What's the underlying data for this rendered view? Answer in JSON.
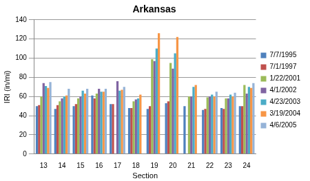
{
  "chart_data": {
    "type": "bar",
    "title": "Arkansas",
    "x_label": "Section",
    "y_label": "IRI (in/mi)",
    "categories": [
      "13",
      "14",
      "15",
      "16",
      "17",
      "18",
      "19",
      "20",
      "21",
      "22",
      "23",
      "24"
    ],
    "series": [
      {
        "name": "7/7/1995",
        "color": "#4f81bd",
        "values": [
          50,
          47,
          50,
          61,
          52,
          48,
          47,
          53,
          50,
          46,
          48,
          50
        ]
      },
      {
        "name": "7/1/1997",
        "color": "#c0504d",
        "values": [
          51,
          51,
          52,
          58,
          52,
          48,
          50,
          55,
          null,
          47,
          47,
          50
        ]
      },
      {
        "name": "1/22/2001",
        "color": "#9bbb59",
        "values": [
          60,
          55,
          58,
          63,
          null,
          55,
          99,
          95,
          60,
          59,
          58,
          72
        ]
      },
      {
        "name": "4/1/2002",
        "color": "#8064a2",
        "values": [
          74,
          58,
          60,
          68,
          76,
          57,
          97,
          89,
          60,
          60,
          58,
          63
        ]
      },
      {
        "name": "4/23/2003",
        "color": "#4bacc6",
        "values": [
          71,
          60,
          66,
          65,
          66,
          58,
          110,
          105,
          70,
          62,
          62,
          70
        ]
      },
      {
        "name": "3/19/2004",
        "color": "#f79646",
        "values": [
          69,
          61,
          63,
          65,
          67,
          62,
          126,
          122,
          72,
          60,
          60,
          69
        ]
      },
      {
        "name": "4/6/2005",
        "color": "#95b3d7",
        "values": [
          75,
          68,
          68,
          68,
          70,
          null,
          null,
          null,
          null,
          65,
          64,
          74
        ]
      }
    ],
    "ylim": [
      0,
      140
    ],
    "yticks": [
      0,
      20,
      40,
      60,
      80,
      100,
      120,
      140
    ],
    "grid": true,
    "legend": "right"
  }
}
